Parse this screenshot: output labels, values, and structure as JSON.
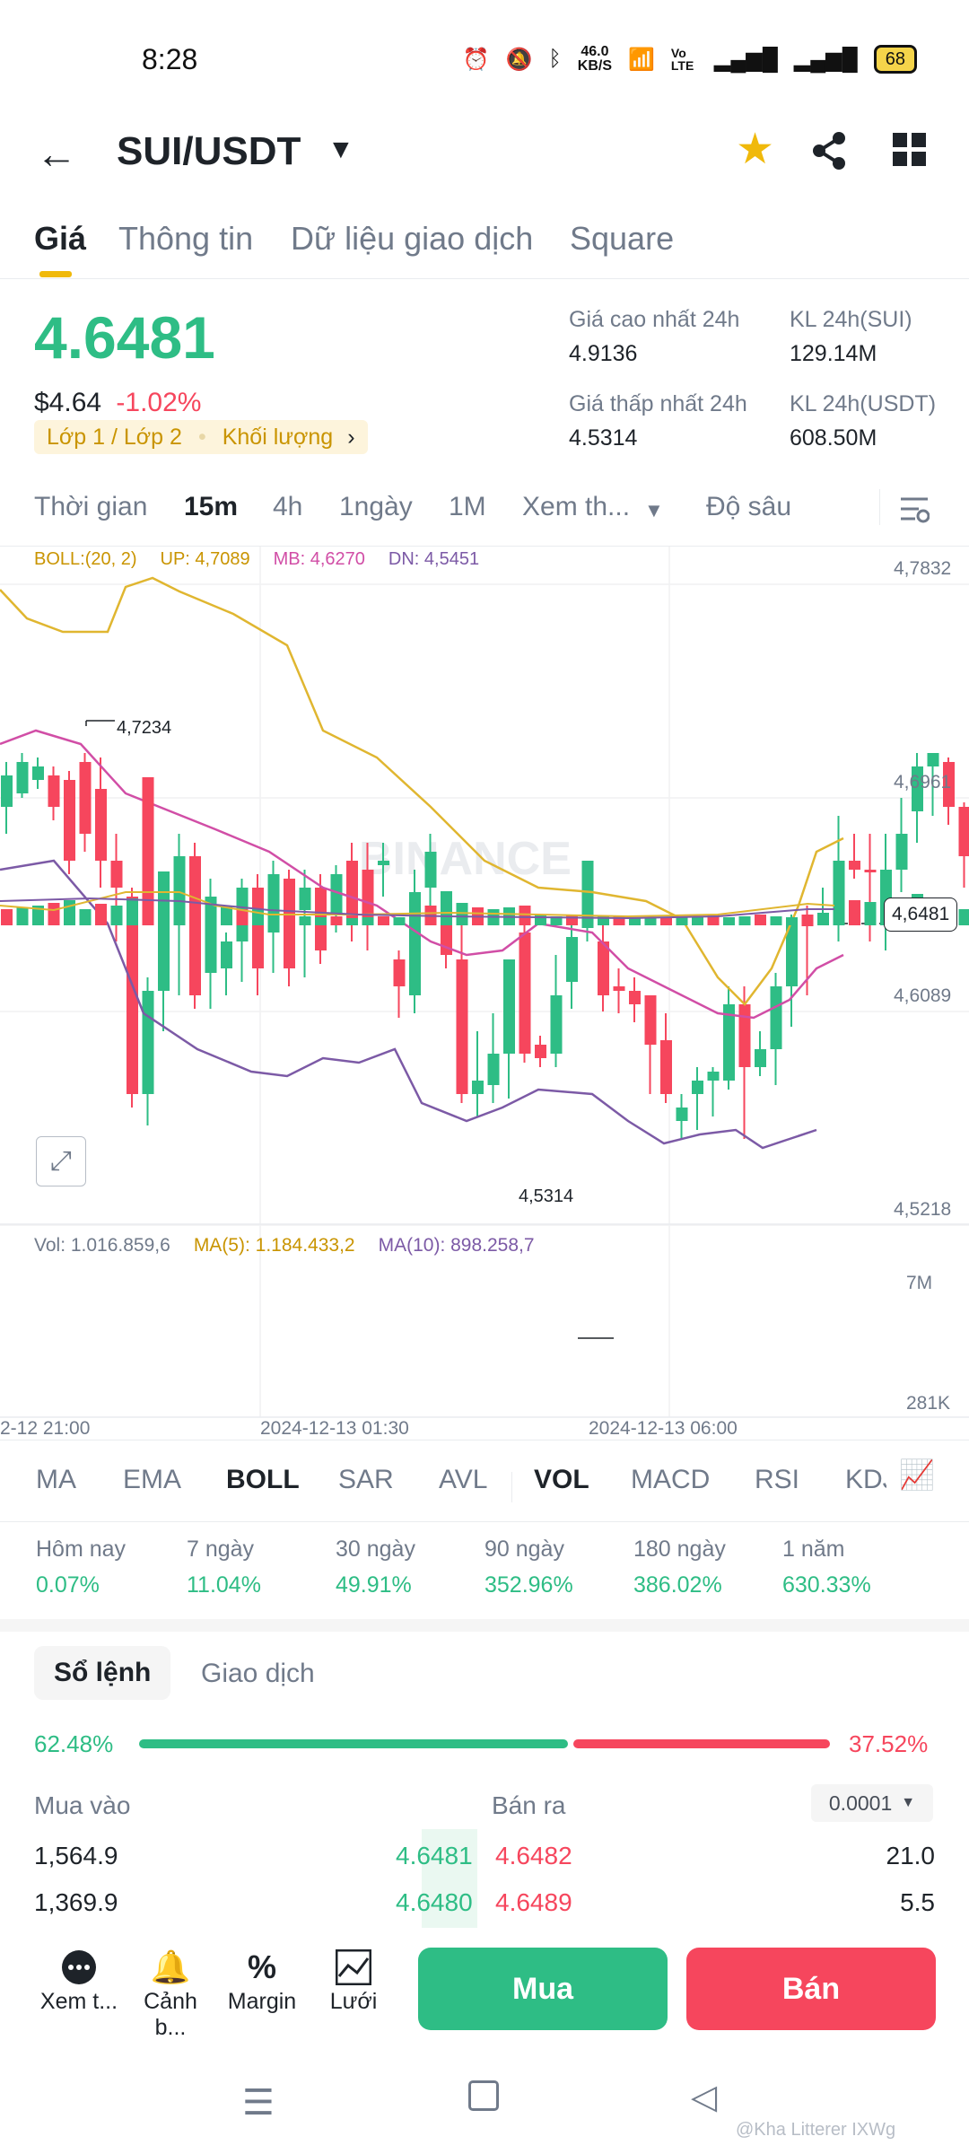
{
  "status": {
    "time": "8:28",
    "net_speed": "46.0",
    "net_unit": "KB/S",
    "volte": "Vo LTE",
    "battery": "68"
  },
  "header": {
    "pair": "SUI/USDT"
  },
  "tabs": [
    "Giá",
    "Thông tin",
    "Dữ liệu giao dịch",
    "Square"
  ],
  "price": {
    "last": "4.6481",
    "usd": "$4.64",
    "change": "-1.02%",
    "layer": "Lớp 1 / Lớp 2",
    "volume_tag": "Khối lượng",
    "high_label": "Giá cao nhất 24h",
    "high": "4.9136",
    "low_label": "Giá thấp nhất 24h",
    "low": "4.5314",
    "vol_sui_label": "KL 24h(SUI)",
    "vol_sui": "129.14M",
    "vol_usdt_label": "KL 24h(USDT)",
    "vol_usdt": "608.50M"
  },
  "timeframes": {
    "time": "Thời gian",
    "m15": "15m",
    "h4": "4h",
    "d1": "1ngày",
    "mo1": "1M",
    "more": "Xem th...",
    "depth": "Độ sâu"
  },
  "chart": {
    "boll": "BOLL:(20, 2)",
    "up": "UP: 4,7089",
    "mb": "MB: 4,6270",
    "dn": "DN: 4,5451",
    "axis": [
      "4,7832",
      "4,6961",
      "4,6089",
      "4,5218"
    ],
    "current": "4,6481",
    "high_mark": "4,7234",
    "low_mark": "4,5314",
    "watermark": "BINANCE",
    "vol": "Vol: 1.016.859,6",
    "ma5": "MA(5): 1.184.433,2",
    "ma10": "MA(10): 898.258,7",
    "vol_axis": [
      "7M",
      "281K"
    ],
    "times": [
      "2-12 21:00",
      "2024-12-13 01:30",
      "2024-12-13 06:00"
    ]
  },
  "indicators": [
    "MA",
    "EMA",
    "BOLL",
    "SAR",
    "AVL",
    "VOL",
    "MACD",
    "RSI",
    "KDJ"
  ],
  "performance": [
    {
      "label": "Hôm nay",
      "value": "0.07%"
    },
    {
      "label": "7 ngày",
      "value": "11.04%"
    },
    {
      "label": "30 ngày",
      "value": "49.91%"
    },
    {
      "label": "90 ngày",
      "value": "352.96%"
    },
    {
      "label": "180 ngày",
      "value": "386.02%"
    },
    {
      "label": "1 năm",
      "value": "630.33%"
    }
  ],
  "orderbook": {
    "tab_book": "Sổ lệnh",
    "tab_trades": "Giao dịch",
    "buy_pct": "62.48%",
    "sell_pct": "37.52%",
    "buy_ratio": 0.6248,
    "buy_label": "Mua vào",
    "sell_label": "Bán ra",
    "precision": "0.0001",
    "rows": [
      {
        "bid_qty": "1,564.9",
        "bid": "4.6481",
        "ask": "4.6482",
        "ask_qty": "21.0"
      },
      {
        "bid_qty": "1,369.9",
        "bid": "4.6480",
        "ask": "4.6489",
        "ask_qty": "5.5"
      }
    ]
  },
  "toolbar": {
    "more": "Xem t...",
    "alert": "Cảnh b...",
    "margin": "Margin",
    "grid": "Lưới",
    "buy": "Mua",
    "sell": "Bán"
  },
  "nav": {
    "watermark": "@Kha Litterer IXWg"
  }
}
